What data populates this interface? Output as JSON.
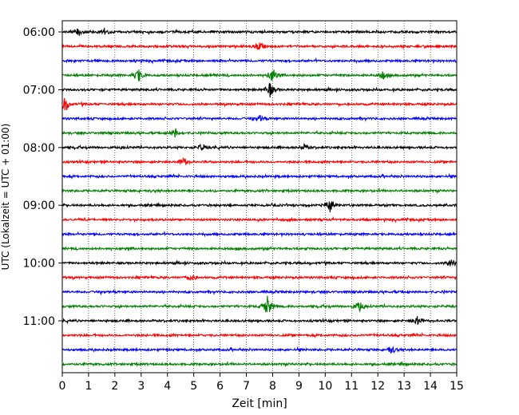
{
  "chart_data": {
    "type": "line",
    "xlabel": "Zeit  [min]",
    "ylabel": "UTC (Lokalzeit = UTC + 01:00)",
    "xlim": [
      0,
      15
    ],
    "x_ticks": [
      "0",
      "1",
      "2",
      "3",
      "4",
      "5",
      "6",
      "7",
      "8",
      "9",
      "10",
      "11",
      "12",
      "13",
      "14",
      "15"
    ],
    "y_ticks": [
      "06:00",
      "07:00",
      "08:00",
      "09:00",
      "10:00",
      "11:00"
    ],
    "grid_x": true,
    "trace_minutes": 15,
    "traces": [
      {
        "start": "06:00",
        "color": "#000000"
      },
      {
        "start": "06:15",
        "color": "#ff0000"
      },
      {
        "start": "06:30",
        "color": "#0000ff"
      },
      {
        "start": "06:45",
        "color": "#008000"
      },
      {
        "start": "07:00",
        "color": "#000000"
      },
      {
        "start": "07:15",
        "color": "#ff0000"
      },
      {
        "start": "07:30",
        "color": "#0000ff"
      },
      {
        "start": "07:45",
        "color": "#008000"
      },
      {
        "start": "08:00",
        "color": "#000000"
      },
      {
        "start": "08:15",
        "color": "#ff0000"
      },
      {
        "start": "08:30",
        "color": "#0000ff"
      },
      {
        "start": "08:45",
        "color": "#008000"
      },
      {
        "start": "09:00",
        "color": "#000000"
      },
      {
        "start": "09:15",
        "color": "#ff0000"
      },
      {
        "start": "09:30",
        "color": "#0000ff"
      },
      {
        "start": "09:45",
        "color": "#008000"
      },
      {
        "start": "10:00",
        "color": "#000000"
      },
      {
        "start": "10:15",
        "color": "#ff0000"
      },
      {
        "start": "10:30",
        "color": "#0000ff"
      },
      {
        "start": "10:45",
        "color": "#008000"
      },
      {
        "start": "11:00",
        "color": "#000000"
      },
      {
        "start": "11:15",
        "color": "#ff0000"
      },
      {
        "start": "11:30",
        "color": "#0000ff"
      },
      {
        "start": "11:45",
        "color": "#008000"
      }
    ],
    "events": [
      {
        "trace": "06:00",
        "minute": 0.6,
        "amplitude": 1.0
      },
      {
        "trace": "06:00",
        "minute": 1.6,
        "amplitude": 0.8
      },
      {
        "trace": "06:15",
        "minute": 7.5,
        "amplitude": 0.9
      },
      {
        "trace": "06:45",
        "minute": 2.9,
        "amplitude": 1.6
      },
      {
        "trace": "06:45",
        "minute": 8.0,
        "amplitude": 1.8
      },
      {
        "trace": "06:45",
        "minute": 12.2,
        "amplitude": 0.8
      },
      {
        "trace": "07:00",
        "minute": 7.9,
        "amplitude": 1.6
      },
      {
        "trace": "07:15",
        "minute": 0.1,
        "amplitude": 2.0
      },
      {
        "trace": "07:30",
        "minute": 7.5,
        "amplitude": 0.7
      },
      {
        "trace": "07:45",
        "minute": 4.3,
        "amplitude": 1.0
      },
      {
        "trace": "08:00",
        "minute": 5.3,
        "amplitude": 0.7
      },
      {
        "trace": "08:00",
        "minute": 9.2,
        "amplitude": 0.7
      },
      {
        "trace": "08:15",
        "minute": 4.6,
        "amplitude": 1.0
      },
      {
        "trace": "09:00",
        "minute": 10.2,
        "amplitude": 1.6
      },
      {
        "trace": "10:00",
        "minute": 14.8,
        "amplitude": 1.2
      },
      {
        "trace": "10:15",
        "minute": 4.9,
        "amplitude": 0.8
      },
      {
        "trace": "10:45",
        "minute": 7.8,
        "amplitude": 2.5
      },
      {
        "trace": "10:45",
        "minute": 11.3,
        "amplitude": 1.1
      },
      {
        "trace": "11:00",
        "minute": 13.5,
        "amplitude": 1.3
      },
      {
        "trace": "11:30",
        "minute": 12.5,
        "amplitude": 0.9
      }
    ]
  }
}
